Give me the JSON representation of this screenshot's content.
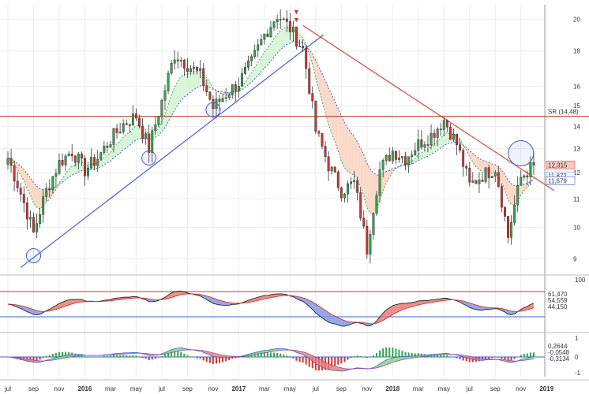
{
  "chart_data": {
    "type": "candlestick",
    "title": "",
    "x_ticks": [
      "jul",
      "sep",
      "nov",
      "2016",
      "mar",
      "may",
      "jul",
      "sep",
      "nov",
      "2017",
      "mar",
      "may",
      "jul",
      "sep",
      "nov",
      "2018",
      "mar",
      "may",
      "jul",
      "sep",
      "nov",
      "2019"
    ],
    "y_ticks": [
      9,
      10,
      11,
      12,
      13,
      14,
      15,
      16,
      18,
      20
    ],
    "y_scale": "log",
    "ylim": [
      8.6,
      21
    ],
    "price_labels": [
      "12,315",
      "11,872",
      "11,679"
    ],
    "sr_label": "SR (14,48)",
    "sr_level": 14.48,
    "trend_lines": [
      {
        "name": "support",
        "color": "#3f5fd6",
        "from": [
          "2015-08",
          8.75
        ],
        "to": [
          "2017-06",
          19.0
        ]
      },
      {
        "name": "resistance",
        "color": "#e0453a",
        "from": [
          "2017-06",
          19.6
        ],
        "to": [
          "2018-12",
          11.3
        ]
      }
    ],
    "circles": [
      [
        "2015-09",
        9.1
      ],
      [
        "2016-06",
        12.6
      ],
      [
        "2016-11",
        14.8
      ],
      [
        "2018-11",
        12.8
      ]
    ],
    "monthly_closes": [
      [
        "2015-07",
        12.6
      ],
      [
        "2015-08",
        11.2
      ],
      [
        "2015-09",
        9.8
      ],
      [
        "2015-10",
        11.3
      ],
      [
        "2015-11",
        12.4
      ],
      [
        "2015-12",
        12.9
      ],
      [
        "2016-01",
        12.1
      ],
      [
        "2016-02",
        12.6
      ],
      [
        "2016-03",
        13.4
      ],
      [
        "2016-04",
        14.1
      ],
      [
        "2016-05",
        14.5
      ],
      [
        "2016-06",
        13.0
      ],
      [
        "2016-07",
        15.2
      ],
      [
        "2016-08",
        17.8
      ],
      [
        "2016-09",
        17.2
      ],
      [
        "2016-10",
        16.6
      ],
      [
        "2016-11",
        14.9
      ],
      [
        "2016-12",
        15.6
      ],
      [
        "2017-01",
        16.2
      ],
      [
        "2017-02",
        17.3
      ],
      [
        "2017-03",
        19.0
      ],
      [
        "2017-04",
        20.3
      ],
      [
        "2017-05",
        19.4
      ],
      [
        "2017-06",
        18.1
      ],
      [
        "2017-07",
        13.8
      ],
      [
        "2017-08",
        12.3
      ],
      [
        "2017-09",
        11.3
      ],
      [
        "2017-10",
        11.6
      ],
      [
        "2017-11",
        9.3
      ],
      [
        "2017-12",
        12.1
      ],
      [
        "2018-01",
        12.9
      ],
      [
        "2018-02",
        12.6
      ],
      [
        "2018-03",
        13.2
      ],
      [
        "2018-04",
        13.6
      ],
      [
        "2018-05",
        14.3
      ],
      [
        "2018-06",
        13.2
      ],
      [
        "2018-07",
        11.5
      ],
      [
        "2018-08",
        11.9
      ],
      [
        "2018-09",
        12.2
      ],
      [
        "2018-10",
        9.7
      ],
      [
        "2018-11",
        11.8
      ],
      [
        "2018-12",
        12.3
      ]
    ],
    "indicator1": {
      "y_ticks": [
        "100"
      ],
      "labels": [
        "61,470",
        "54,559",
        "44,150"
      ],
      "label_colors": [
        "#6a8fe0",
        "#222",
        "#e0453a"
      ]
    },
    "indicator2": {
      "y_ticks": [
        "1",
        "0",
        "-1"
      ],
      "labels": [
        "0,2644",
        "-0,0548",
        "-0,3134"
      ],
      "label_colors": [
        "#3da44d",
        "#6a8fe0",
        "#e0453a"
      ]
    },
    "colors": {
      "up": "#2fa84a",
      "down": "#d9302c",
      "support": "#3f5fd6",
      "resistance": "#e0453a",
      "sr_line": "#c0392b",
      "cloud_up": "#d8f5d8",
      "cloud_down": "#fbd9c9",
      "circle": "#3f5fd6"
    }
  },
  "markers": {
    "arrow_label": "▼"
  }
}
